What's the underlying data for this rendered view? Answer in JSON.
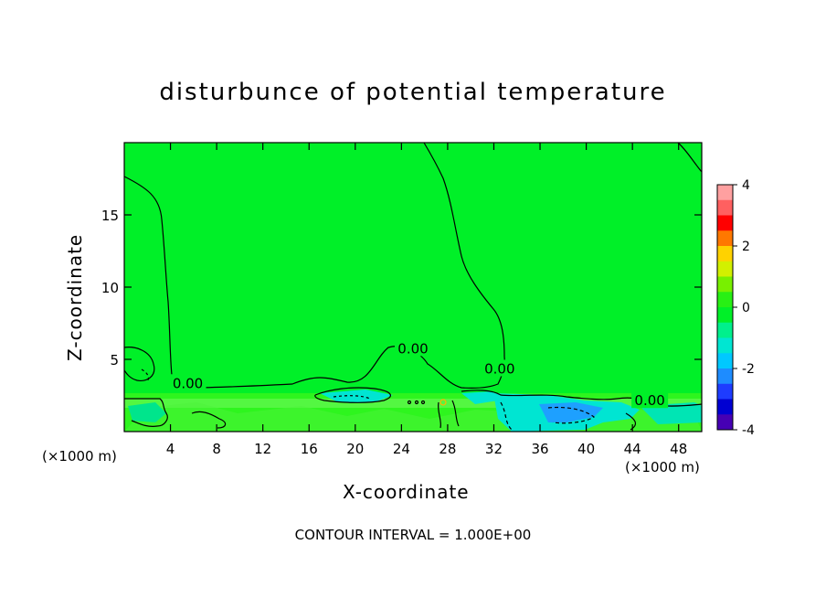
{
  "chart_data": {
    "type": "heatmap",
    "title": "disturbunce of potential temperature",
    "xlabel": "X-coordinate",
    "ylabel": "Z-coordinate",
    "x_unit": "(×1000 m)",
    "x_ticks": [
      4,
      8,
      12,
      16,
      20,
      24,
      28,
      32,
      36,
      40,
      44,
      48
    ],
    "y_ticks": [
      5,
      10,
      15
    ],
    "xlim": [
      0,
      50
    ],
    "ylim": [
      0,
      20
    ],
    "colorbar": {
      "ticks": [
        4,
        2,
        0,
        -2,
        -4
      ],
      "range": [
        -4,
        4
      ]
    },
    "contour_labels": [
      {
        "text": "0.00",
        "x": 5.5,
        "z": 3.4
      },
      {
        "text": "0.00",
        "x": 25.0,
        "z": 5.8
      },
      {
        "text": "0.00",
        "x": 32.5,
        "z": 4.4
      },
      {
        "text": "0.00",
        "x": 45.5,
        "z": 2.2
      }
    ],
    "footnote": "CONTOUR INTERVAL = 1.000E+00"
  },
  "colors": {
    "field_background": "#00f028",
    "contour": "#000000",
    "negative_anomaly": "#00e5e5",
    "strong_negative_anomaly": "#1e90ff"
  }
}
